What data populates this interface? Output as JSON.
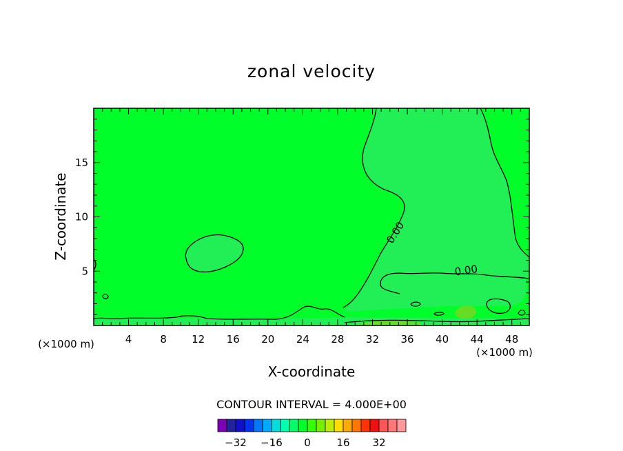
{
  "chart_data": {
    "type": "contour",
    "title": "zonal velocity",
    "xlabel": "X-coordinate",
    "ylabel": "Z-coordinate",
    "x_unit_left": "(×1000 m)",
    "x_unit_right": "(×1000 m)",
    "xlim": [
      0,
      50
    ],
    "ylim": [
      0,
      20
    ],
    "x_ticks": [
      4,
      8,
      12,
      16,
      20,
      24,
      28,
      32,
      36,
      40,
      44,
      48
    ],
    "y_ticks": [
      5,
      10,
      15
    ],
    "contour_interval_text": "CONTOUR INTERVAL = 4.000E+00",
    "contour_labels": [
      "0.00",
      "0.00"
    ],
    "background_color": "#00ff2a",
    "region_color": "#22ee55",
    "colorbar": {
      "colors": [
        "#7d00b4",
        "#22229a",
        "#1010cc",
        "#0033ee",
        "#0077ff",
        "#00aaff",
        "#00dddd",
        "#00ffb0",
        "#00ff66",
        "#00ff2a",
        "#33ff00",
        "#77ee00",
        "#bbee00",
        "#ffdd00",
        "#ffaa00",
        "#ff7700",
        "#ff3300",
        "#ee1111",
        "#ff5555",
        "#ff7777",
        "#ff9999"
      ],
      "tick_labels": [
        "−32",
        "−16",
        "0",
        "16",
        "32"
      ],
      "tick_values": [
        -32,
        -16,
        0,
        16,
        32
      ]
    }
  }
}
